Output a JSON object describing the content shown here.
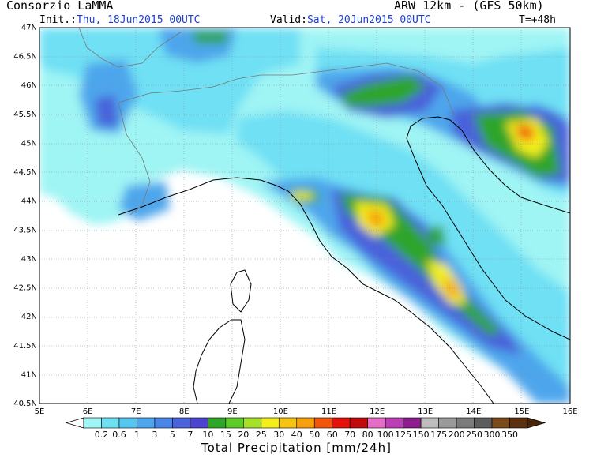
{
  "header": {
    "left_title": "Consorzio LaMMA",
    "right_title": "ARW 12km - (GFS 50km)",
    "init_label": "Init.:",
    "init_value": "Thu, 18Jun2015 00UTC",
    "valid_label": "Valid:",
    "valid_value": "Sat, 20Jun2015 00UTC",
    "forecast_step": "T=+48h"
  },
  "map": {
    "lon_labels": [
      "5E",
      "6E",
      "7E",
      "8E",
      "9E",
      "10E",
      "11E",
      "12E",
      "13E",
      "14E",
      "15E",
      "16E"
    ],
    "lat_labels": [
      "40.5N",
      "41N",
      "41.5N",
      "42N",
      "42.5N",
      "43N",
      "43.5N",
      "44N",
      "44.5N",
      "45N",
      "45.5N",
      "46N",
      "46.5N",
      "47N"
    ],
    "lon_range": [
      5,
      16
    ],
    "lat_range": [
      40.5,
      47
    ],
    "grid": true
  },
  "colorbar": {
    "title": "Total Precipitation [mm/24h]",
    "labels": [
      "0.2",
      "0.6",
      "1",
      "3",
      "5",
      "7",
      "10",
      "15",
      "20",
      "25",
      "30",
      "40",
      "50",
      "60",
      "70",
      "80",
      "100",
      "125",
      "150",
      "175",
      "200",
      "250",
      "300",
      "350"
    ],
    "colors": [
      "#9ff4f4",
      "#6fe0f4",
      "#55c6f0",
      "#4ea6ec",
      "#4a86e6",
      "#4a62da",
      "#4c44d0",
      "#2fa52a",
      "#5fcb2a",
      "#a6e02a",
      "#f2ef1c",
      "#f6c412",
      "#f5a00c",
      "#f2560a",
      "#e2110a",
      "#be0a0a",
      "#e46ec6",
      "#bb3fb4",
      "#8c1c8c",
      "#bdbdbd",
      "#9a9a9a",
      "#7c7c7c",
      "#5c5c5c",
      "#7a4a1a",
      "#5a3010"
    ]
  }
}
